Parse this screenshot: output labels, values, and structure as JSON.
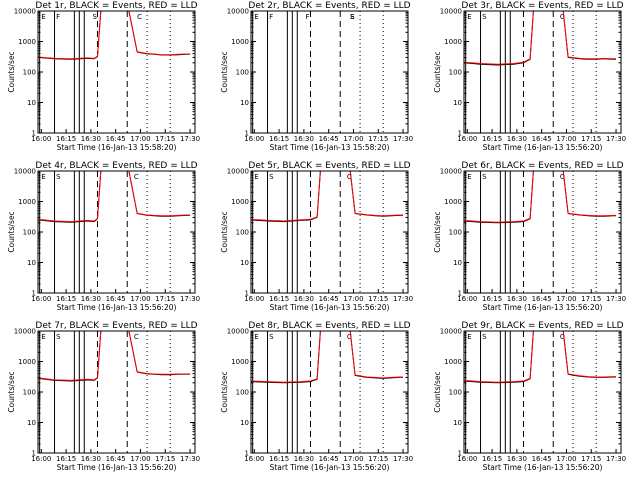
{
  "chart_data": [
    {
      "type": "line",
      "title": "Det 1r, BLACK = Events, RED = LLD",
      "xlabel": "Start Time (16-Jan-13 15:58:20)",
      "ylabel": "Counts/sec",
      "xticks": [
        "16:00",
        "16:15",
        "16:30",
        "16:45",
        "17:00",
        "17:15",
        "17:30"
      ],
      "yticks": [
        "1",
        "10",
        "100",
        "1000",
        "10000"
      ],
      "xlim_min": [
        0,
        95
      ],
      "ylim": [
        1,
        10000
      ],
      "yscale": "log",
      "annotations": [
        "E",
        "F",
        "S",
        "C"
      ],
      "series": [
        {
          "name": "BLACK = Events",
          "color": "#000000",
          "x": [
            0,
            10,
            20,
            30,
            34,
            36,
            38,
            41,
            45,
            50,
            55,
            60,
            65,
            70,
            75,
            80,
            85,
            90,
            92
          ],
          "y": [
            300,
            270,
            260,
            280,
            270,
            320,
            10000,
            10000,
            10000,
            10000,
            10000,
            450,
            400,
            380,
            360,
            360,
            370,
            380,
            380
          ]
        },
        {
          "name": "RED = LLD",
          "color": "#ff0000",
          "x": [
            0,
            10,
            20,
            30,
            34,
            36,
            38,
            41,
            45,
            50,
            55,
            60,
            65,
            70,
            75,
            80,
            85,
            90,
            92
          ],
          "y": [
            310,
            280,
            270,
            290,
            280,
            330,
            10000,
            10000,
            10000,
            10000,
            10000,
            460,
            410,
            390,
            370,
            370,
            380,
            390,
            390
          ]
        }
      ]
    },
    {
      "type": "line",
      "title": "Det 2r, BLACK = Events, RED = LLD",
      "xlabel": "Start Time (16-Jan-13 15:58:20)",
      "ylabel": "Counts/sec",
      "xticks": [
        "16:00",
        "16:15",
        "16:30",
        "16:45",
        "17:00",
        "17:15",
        "17:30"
      ],
      "yticks": [
        "1",
        "10",
        "100",
        "1000",
        "10000"
      ],
      "xlim_min": [
        0,
        95
      ],
      "ylim": [
        1,
        10000
      ],
      "yscale": "log",
      "annotations": [
        "E",
        "F",
        "F",
        "S",
        "E"
      ],
      "series": []
    },
    {
      "type": "line",
      "title": "Det 3r, BLACK = Events, RED = LLD",
      "xlabel": "Start Time (16-Jan-13 15:56:20)",
      "ylabel": "Counts/sec",
      "xticks": [
        "16:00",
        "16:15",
        "16:30",
        "16:45",
        "17:00",
        "17:15",
        "17:30"
      ],
      "yticks": [
        "1",
        "10",
        "100",
        "1000",
        "10000"
      ],
      "xlim_min": [
        0,
        95
      ],
      "ylim": [
        1,
        10000
      ],
      "yscale": "log",
      "annotations": [
        "E",
        "S",
        "C"
      ],
      "series": [
        {
          "name": "BLACK = Events",
          "color": "#000000",
          "x": [
            0,
            10,
            20,
            30,
            36,
            40,
            42,
            45,
            50,
            55,
            60,
            63,
            70,
            75,
            80,
            85,
            90,
            92
          ],
          "y": [
            200,
            180,
            170,
            180,
            200,
            260,
            10000,
            10000,
            10000,
            10000,
            10000,
            300,
            270,
            260,
            260,
            270,
            260,
            260
          ]
        },
        {
          "name": "RED = LLD",
          "color": "#ff0000",
          "x": [
            0,
            10,
            20,
            30,
            36,
            40,
            42,
            45,
            50,
            55,
            60,
            63,
            70,
            75,
            80,
            85,
            90,
            92
          ],
          "y": [
            210,
            190,
            180,
            190,
            210,
            270,
            10000,
            10000,
            10000,
            10000,
            10000,
            310,
            280,
            270,
            270,
            280,
            270,
            270
          ]
        }
      ]
    },
    {
      "type": "line",
      "title": "Det 4r, BLACK = Events, RED = LLD",
      "xlabel": "Start Time (16-Jan-13 15:56:20)",
      "ylabel": "Counts/sec",
      "xticks": [
        "16:00",
        "16:15",
        "16:30",
        "16:45",
        "17:00",
        "17:15",
        "17:30"
      ],
      "yticks": [
        "1",
        "10",
        "100",
        "1000",
        "10000"
      ],
      "xlim_min": [
        0,
        95
      ],
      "ylim": [
        1,
        10000
      ],
      "yscale": "log",
      "annotations": [
        "E",
        "S",
        "C"
      ],
      "series": [
        {
          "name": "BLACK = Events",
          "color": "#000000",
          "x": [
            0,
            10,
            20,
            30,
            34,
            36,
            38,
            41,
            45,
            50,
            55,
            60,
            65,
            70,
            75,
            80,
            85,
            90,
            92
          ],
          "y": [
            250,
            220,
            210,
            230,
            220,
            270,
            10000,
            10000,
            10000,
            10000,
            10000,
            400,
            360,
            340,
            330,
            330,
            340,
            350,
            350
          ]
        },
        {
          "name": "RED = LLD",
          "color": "#ff0000",
          "x": [
            0,
            10,
            20,
            30,
            34,
            36,
            38,
            41,
            45,
            50,
            55,
            60,
            65,
            70,
            75,
            80,
            85,
            90,
            92
          ],
          "y": [
            260,
            230,
            220,
            240,
            230,
            280,
            10000,
            10000,
            10000,
            10000,
            10000,
            410,
            370,
            350,
            340,
            340,
            350,
            360,
            360
          ]
        }
      ]
    },
    {
      "type": "line",
      "title": "Det 5r, BLACK = Events, RED = LLD",
      "xlabel": "Start Time (16-Jan-13 15:56:20)",
      "ylabel": "Counts/sec",
      "xticks": [
        "16:00",
        "16:15",
        "16:30",
        "16:45",
        "17:00",
        "17:15",
        "17:30"
      ],
      "yticks": [
        "1",
        "10",
        "100",
        "1000",
        "10000"
      ],
      "xlim_min": [
        0,
        95
      ],
      "ylim": [
        1,
        10000
      ],
      "yscale": "log",
      "annotations": [
        "E",
        "S",
        "C"
      ],
      "series": [
        {
          "name": "BLACK = Events",
          "color": "#000000",
          "x": [
            0,
            10,
            20,
            30,
            36,
            40,
            42,
            45,
            50,
            55,
            60,
            63,
            70,
            75,
            80,
            85,
            90,
            92
          ],
          "y": [
            250,
            230,
            220,
            240,
            250,
            300,
            10000,
            10000,
            10000,
            10000,
            10000,
            400,
            360,
            340,
            330,
            340,
            350,
            350
          ]
        },
        {
          "name": "RED = LLD",
          "color": "#ff0000",
          "x": [
            0,
            10,
            20,
            30,
            36,
            40,
            42,
            45,
            50,
            55,
            60,
            63,
            70,
            75,
            80,
            85,
            90,
            92
          ],
          "y": [
            260,
            240,
            230,
            250,
            260,
            310,
            10000,
            10000,
            10000,
            10000,
            10000,
            410,
            370,
            350,
            340,
            350,
            360,
            360
          ]
        }
      ]
    },
    {
      "type": "line",
      "title": "Det 6r, BLACK = Events, RED = LLD",
      "xlabel": "Start Time (16-Jan-13 15:56:20)",
      "ylabel": "Counts/sec",
      "xticks": [
        "16:00",
        "16:15",
        "16:30",
        "16:45",
        "17:00",
        "17:15",
        "17:30"
      ],
      "yticks": [
        "1",
        "10",
        "100",
        "1000",
        "10000"
      ],
      "xlim_min": [
        0,
        95
      ],
      "ylim": [
        1,
        10000
      ],
      "yscale": "log",
      "annotations": [
        "E",
        "S",
        "C"
      ],
      "series": [
        {
          "name": "BLACK = Events",
          "color": "#000000",
          "x": [
            0,
            10,
            20,
            30,
            36,
            40,
            42,
            45,
            50,
            55,
            60,
            63,
            70,
            75,
            80,
            85,
            90,
            92
          ],
          "y": [
            230,
            210,
            200,
            210,
            220,
            270,
            10000,
            10000,
            10000,
            10000,
            10000,
            400,
            360,
            340,
            330,
            330,
            340,
            340
          ]
        },
        {
          "name": "RED = LLD",
          "color": "#ff0000",
          "x": [
            0,
            10,
            20,
            30,
            36,
            40,
            42,
            45,
            50,
            55,
            60,
            63,
            70,
            75,
            80,
            85,
            90,
            92
          ],
          "y": [
            240,
            220,
            210,
            220,
            230,
            280,
            10000,
            10000,
            10000,
            10000,
            10000,
            410,
            370,
            350,
            340,
            340,
            350,
            350
          ]
        }
      ]
    },
    {
      "type": "line",
      "title": "Det 7r, BLACK = Events, RED = LLD",
      "xlabel": "Start Time (16-Jan-13 15:56:20)",
      "ylabel": "Counts/sec",
      "xticks": [
        "16:00",
        "16:15",
        "16:30",
        "16:45",
        "17:00",
        "17:15",
        "17:30"
      ],
      "yticks": [
        "1",
        "10",
        "100",
        "1000",
        "10000"
      ],
      "xlim_min": [
        0,
        95
      ],
      "ylim": [
        1,
        10000
      ],
      "yscale": "log",
      "annotations": [
        "E",
        "S",
        "C"
      ],
      "series": [
        {
          "name": "BLACK = Events",
          "color": "#000000",
          "x": [
            0,
            10,
            20,
            30,
            34,
            36,
            38,
            41,
            45,
            50,
            55,
            60,
            65,
            70,
            75,
            80,
            85,
            90,
            92
          ],
          "y": [
            280,
            240,
            230,
            250,
            240,
            290,
            10000,
            10000,
            10000,
            10000,
            10000,
            450,
            400,
            380,
            370,
            370,
            380,
            380,
            380
          ]
        },
        {
          "name": "RED = LLD",
          "color": "#ff0000",
          "x": [
            0,
            10,
            20,
            30,
            34,
            36,
            38,
            41,
            45,
            50,
            55,
            60,
            65,
            70,
            75,
            80,
            85,
            90,
            92
          ],
          "y": [
            290,
            250,
            240,
            260,
            250,
            300,
            10000,
            10000,
            10000,
            10000,
            10000,
            460,
            410,
            390,
            380,
            380,
            390,
            390,
            390
          ]
        }
      ]
    },
    {
      "type": "line",
      "title": "Det 8r, BLACK = Events, RED = LLD",
      "xlabel": "Start Time (16-Jan-13 15:56:20)",
      "ylabel": "Counts/sec",
      "xticks": [
        "16:00",
        "16:15",
        "16:30",
        "16:45",
        "17:00",
        "17:15",
        "17:30"
      ],
      "yticks": [
        "1",
        "10",
        "100",
        "1000",
        "10000"
      ],
      "xlim_min": [
        0,
        95
      ],
      "ylim": [
        1,
        10000
      ],
      "yscale": "log",
      "annotations": [
        "E",
        "S",
        "C"
      ],
      "series": [
        {
          "name": "BLACK = Events",
          "color": "#000000",
          "x": [
            0,
            10,
            20,
            30,
            36,
            40,
            42,
            45,
            50,
            55,
            60,
            63,
            70,
            75,
            80,
            85,
            90,
            92
          ],
          "y": [
            220,
            210,
            200,
            210,
            220,
            260,
            10000,
            10000,
            10000,
            10000,
            10000,
            350,
            300,
            290,
            280,
            290,
            300,
            300
          ]
        },
        {
          "name": "RED = LLD",
          "color": "#ff0000",
          "x": [
            0,
            10,
            20,
            30,
            36,
            40,
            42,
            45,
            50,
            55,
            60,
            63,
            70,
            75,
            80,
            85,
            90,
            92
          ],
          "y": [
            230,
            220,
            210,
            220,
            230,
            270,
            10000,
            10000,
            10000,
            10000,
            10000,
            360,
            310,
            300,
            290,
            300,
            310,
            310
          ]
        }
      ]
    },
    {
      "type": "line",
      "title": "Det 9r, BLACK = Events, RED = LLD",
      "xlabel": "Start Time (16-Jan-13 15:56:20)",
      "ylabel": "Counts/sec",
      "xticks": [
        "16:00",
        "16:15",
        "16:30",
        "16:45",
        "17:00",
        "17:15",
        "17:30"
      ],
      "yticks": [
        "1",
        "10",
        "100",
        "1000",
        "10000"
      ],
      "xlim_min": [
        0,
        95
      ],
      "ylim": [
        1,
        10000
      ],
      "yscale": "log",
      "annotations": [
        "E",
        "S",
        "C"
      ],
      "series": [
        {
          "name": "BLACK = Events",
          "color": "#000000",
          "x": [
            0,
            10,
            20,
            30,
            36,
            40,
            42,
            45,
            50,
            55,
            60,
            63,
            70,
            75,
            80,
            85,
            90,
            92
          ],
          "y": [
            230,
            210,
            200,
            210,
            220,
            270,
            10000,
            10000,
            10000,
            10000,
            10000,
            380,
            330,
            310,
            300,
            300,
            310,
            310
          ]
        },
        {
          "name": "RED = LLD",
          "color": "#ff0000",
          "x": [
            0,
            10,
            20,
            30,
            36,
            40,
            42,
            45,
            50,
            55,
            60,
            63,
            70,
            75,
            80,
            85,
            90,
            92
          ],
          "y": [
            240,
            220,
            210,
            220,
            230,
            280,
            10000,
            10000,
            10000,
            10000,
            10000,
            390,
            340,
            320,
            310,
            310,
            320,
            320
          ]
        }
      ]
    }
  ]
}
